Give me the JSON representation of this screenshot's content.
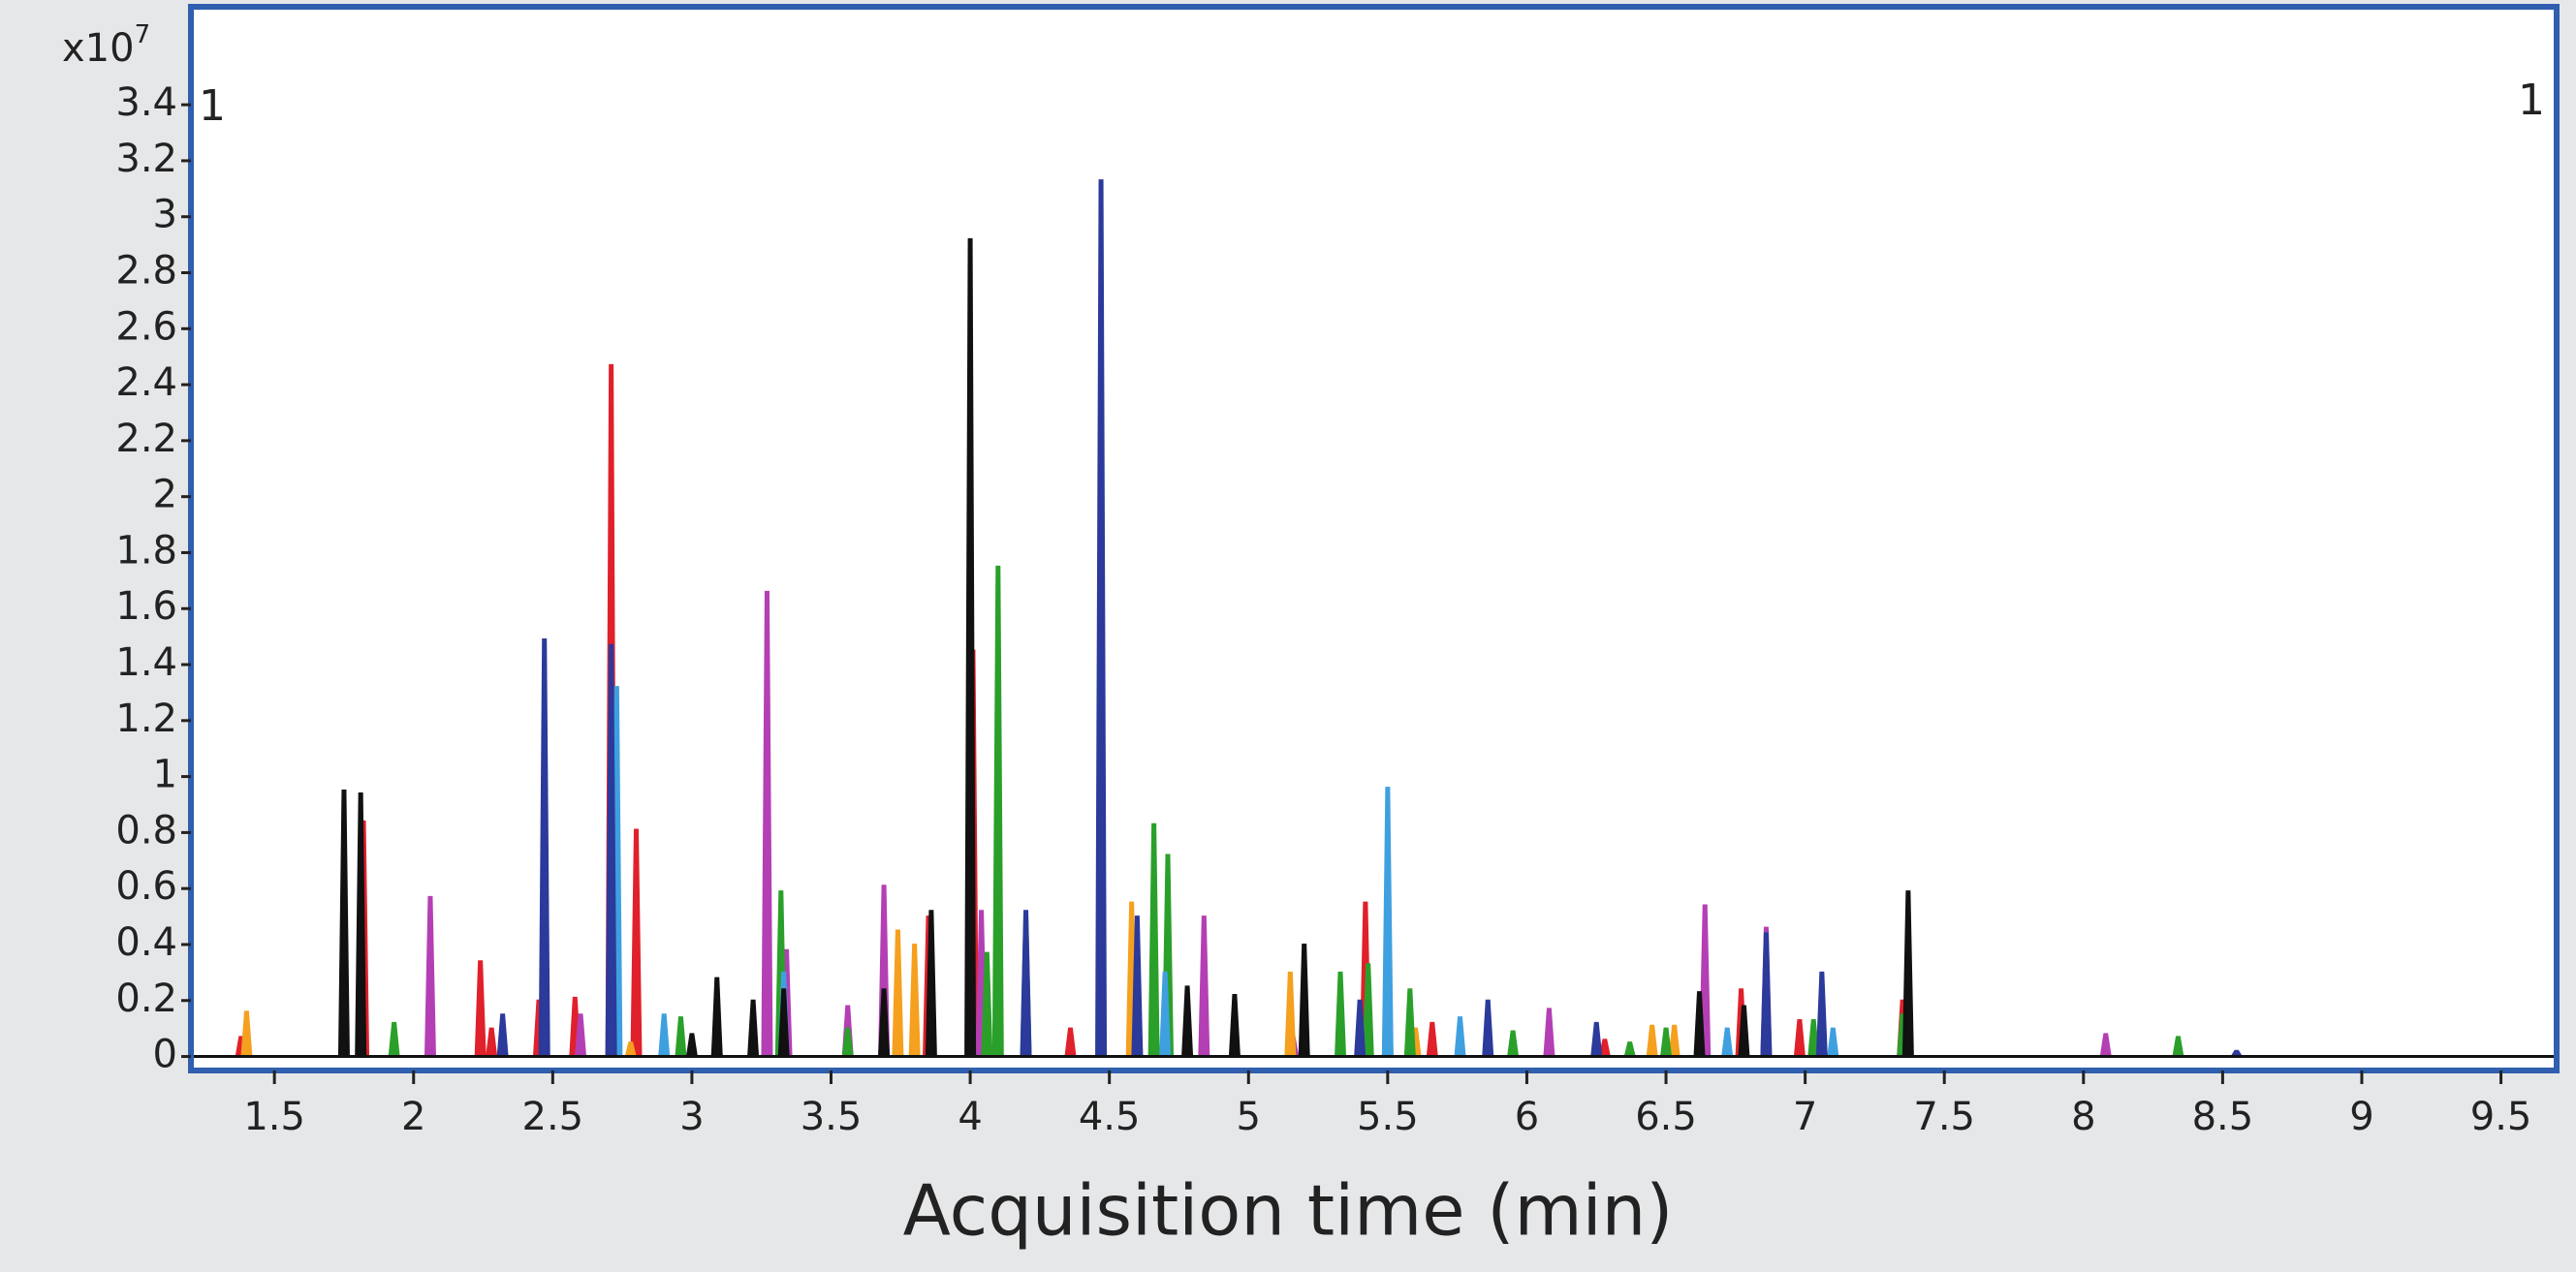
{
  "chart_data": {
    "type": "chromatogram",
    "x_label": "Acquisition time (min)",
    "y_scale_base": "x10",
    "y_scale_exponent": "7",
    "annotations": [
      "1",
      "1"
    ],
    "xlim": [
      1.2,
      9.7
    ],
    "ylim": [
      -0.05,
      3.75
    ],
    "xticks": [
      1.5,
      2,
      2.5,
      3,
      3.5,
      4,
      4.5,
      5,
      5.5,
      6,
      6.5,
      7,
      7.5,
      8,
      8.5,
      9,
      9.5
    ],
    "yticks": [
      0,
      0.2,
      0.4,
      0.6,
      0.8,
      1,
      1.2,
      1.4,
      1.6,
      1.8,
      2,
      2.2,
      2.4,
      2.6,
      2.8,
      3,
      3.2,
      3.4
    ],
    "frame_color": "#2f5fae",
    "series": [
      {
        "color": "#e0202a",
        "x": [
          1.38,
          1.82,
          2.24,
          2.28,
          2.45,
          2.58,
          2.71,
          2.8,
          3.85,
          4.01,
          4.36,
          5.42,
          5.66,
          6.08,
          6.28,
          6.77,
          6.98,
          7.35
        ],
        "values": [
          0.07,
          0.84,
          0.34,
          0.1,
          0.2,
          0.21,
          2.47,
          0.81,
          0.5,
          1.45,
          0.1,
          0.55,
          0.12,
          0.1,
          0.06,
          0.24,
          0.13,
          0.2
        ]
      },
      {
        "color": "#b43fb4",
        "x": [
          2.06,
          2.6,
          3.27,
          3.34,
          3.56,
          3.69,
          4.04,
          4.6,
          4.84,
          5.16,
          6.08,
          6.64,
          6.86,
          8.08
        ],
        "values": [
          0.57,
          0.15,
          1.66,
          0.38,
          0.18,
          0.61,
          0.52,
          0.3,
          0.5,
          0.07,
          0.17,
          0.54,
          0.46,
          0.08
        ]
      },
      {
        "color": "#f5a01e",
        "x": [
          1.4,
          2.78,
          3.74,
          3.8,
          4.58,
          5.15,
          5.5,
          5.6,
          6.45,
          6.53
        ],
        "values": [
          0.16,
          0.05,
          0.45,
          0.4,
          0.55,
          0.3,
          0.55,
          0.1,
          0.11,
          0.11
        ]
      },
      {
        "color": "#2aa02a",
        "x": [
          1.93,
          2.96,
          3.32,
          3.56,
          4.06,
          4.1,
          4.2,
          4.66,
          4.71,
          5.33,
          5.43,
          5.58,
          5.95,
          6.37,
          6.5,
          7.03,
          7.35,
          8.34
        ],
        "values": [
          0.12,
          0.14,
          0.59,
          0.1,
          0.37,
          1.75,
          0.5,
          0.83,
          0.72,
          0.3,
          0.33,
          0.24,
          0.09,
          0.05,
          0.1,
          0.13,
          0.15,
          0.07
        ]
      },
      {
        "color": "#3fa0e0",
        "x": [
          2.73,
          2.9,
          3.33,
          4.7,
          4.95,
          5.5,
          5.76,
          6.72,
          7.1
        ],
        "values": [
          1.32,
          0.15,
          0.3,
          0.3,
          0.1,
          0.96,
          0.14,
          0.1,
          0.1
        ]
      },
      {
        "color": "#2b3a9b",
        "x": [
          2.32,
          2.47,
          2.71,
          3.09,
          4.2,
          4.47,
          4.6,
          5.4,
          5.86,
          6.25,
          6.86,
          7.06,
          8.55
        ],
        "values": [
          0.15,
          1.49,
          1.47,
          0.2,
          0.52,
          3.13,
          0.5,
          0.2,
          0.2,
          0.12,
          0.44,
          0.3,
          0.02
        ]
      },
      {
        "color": "#111111",
        "x": [
          1.75,
          1.81,
          3.0,
          3.09,
          3.22,
          3.33,
          3.69,
          3.86,
          4.0,
          4.78,
          4.95,
          5.2,
          6.62,
          6.78,
          7.37
        ],
        "values": [
          0.95,
          0.94,
          0.08,
          0.28,
          0.2,
          0.24,
          0.24,
          0.52,
          2.92,
          0.25,
          0.22,
          0.4,
          0.23,
          0.18,
          0.59
        ]
      }
    ]
  }
}
